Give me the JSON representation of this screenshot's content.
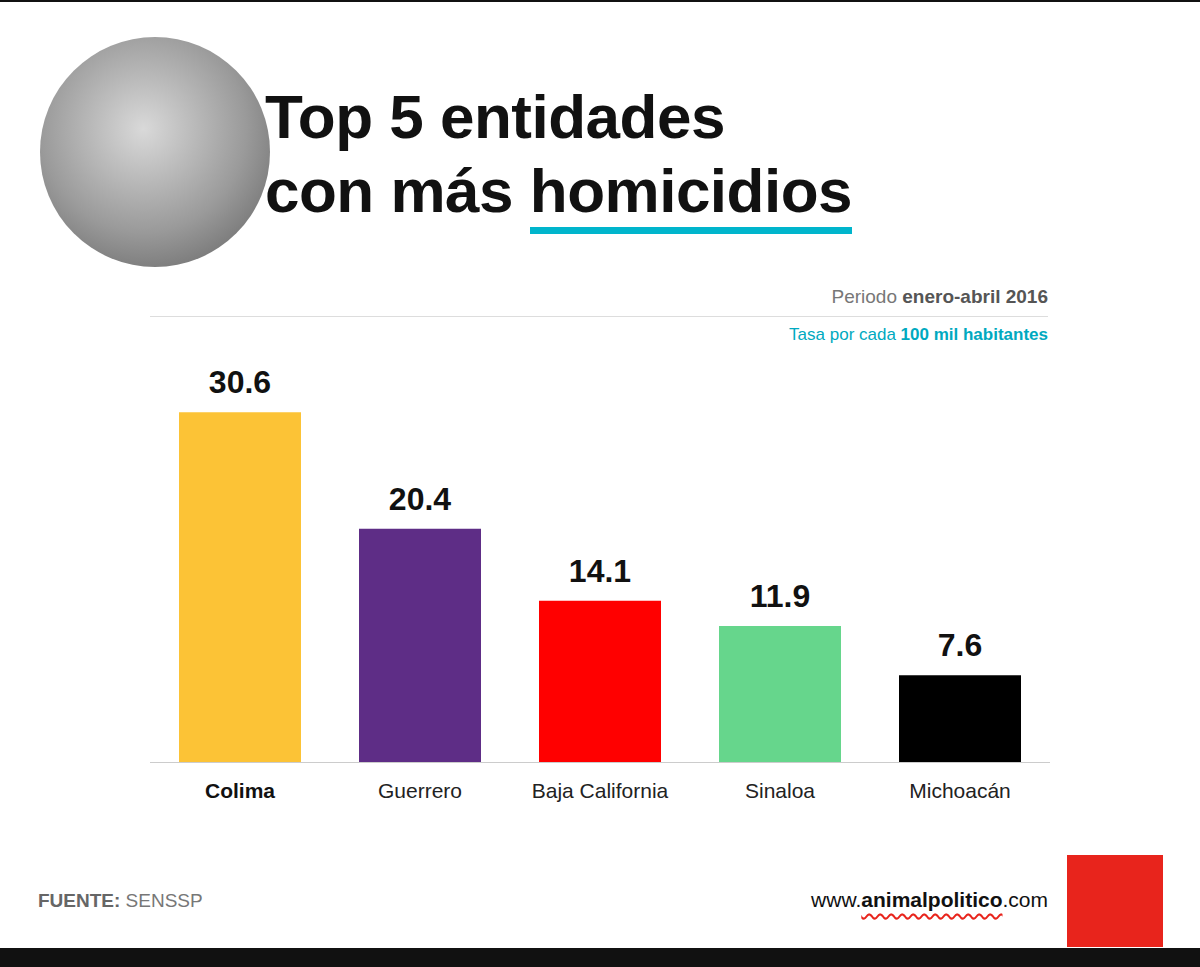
{
  "chart_data": {
    "type": "bar",
    "title": "Top 5 entidades con más homicidios",
    "subtitle": "Periodo enero-abril 2016",
    "annotations": [
      "Tasa por cada 100 mil habitantes",
      "FUENTE: SENSSP",
      "www.animalpolitico.com"
    ],
    "categories": [
      "Colima",
      "Guerrero",
      "Baja California",
      "Sinaloa",
      "Michoacán"
    ],
    "values": [
      30.6,
      20.4,
      14.1,
      11.9,
      7.6
    ],
    "colors": [
      "#fcc336",
      "#5e2d86",
      "#ff0000",
      "#66d68c",
      "#000000"
    ],
    "ylim": [
      0,
      35
    ],
    "grid": false,
    "data_labels": true,
    "tick_labels": "x"
  }
}
